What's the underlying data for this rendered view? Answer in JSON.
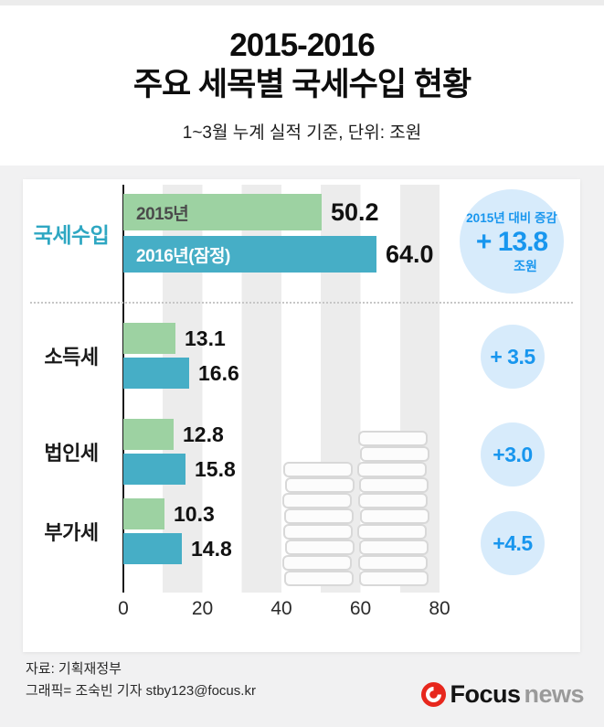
{
  "header": {
    "title_line1": "2015-2016",
    "title_line2": "주요 세목별 국세수입 현황",
    "subtitle": "1~3월 누계 실적 기준, 단위: 조원"
  },
  "chart_data": {
    "type": "bar",
    "orientation": "horizontal",
    "title": "2015-2016 주요 세목별 국세수입 현황",
    "note": "1~3월 누계 실적 기준, 단위: 조원",
    "categories": [
      "국세수입",
      "소득세",
      "법인세",
      "부가세"
    ],
    "series": [
      {
        "name": "2015년",
        "color": "#9dd2a2",
        "label_color": "#4b4b4b",
        "values": [
          50.2,
          13.1,
          12.8,
          10.3
        ],
        "labels": [
          "50.2",
          "13.1",
          "12.8",
          "10.3"
        ]
      },
      {
        "name": "2016년(잠정)",
        "color": "#46aec6",
        "label_color": "#ffffff",
        "values": [
          64.0,
          16.6,
          15.8,
          14.8
        ],
        "labels": [
          "64.0",
          "16.6",
          "15.8",
          "14.8"
        ]
      }
    ],
    "xlim": [
      0,
      80
    ],
    "x_ticks": [
      "0",
      "20",
      "40",
      "60",
      "80"
    ],
    "grid": "vertical-stripes",
    "legend_position": "inside-first-bars",
    "diff_badge": {
      "title": "2015년 대비 증감",
      "value": "+ 13.8",
      "unit": "조원"
    },
    "diffs": [
      "+ 3.5",
      "+3.0",
      "+4.5"
    ]
  },
  "colors": {
    "bar_2015": "#9dd2a2",
    "bar_2016": "#46aec6",
    "accent_label": "#2ea7c2",
    "badge_bg": "#d7ebfb",
    "badge_text": "#1896ee",
    "section_bg": "#f1f1f2"
  },
  "footer": {
    "source": "자료: 기획재정부",
    "credit": "그래픽= 조숙빈 기자 stby123@focus.kr",
    "logo_focus": "Focus",
    "logo_news": "news"
  }
}
